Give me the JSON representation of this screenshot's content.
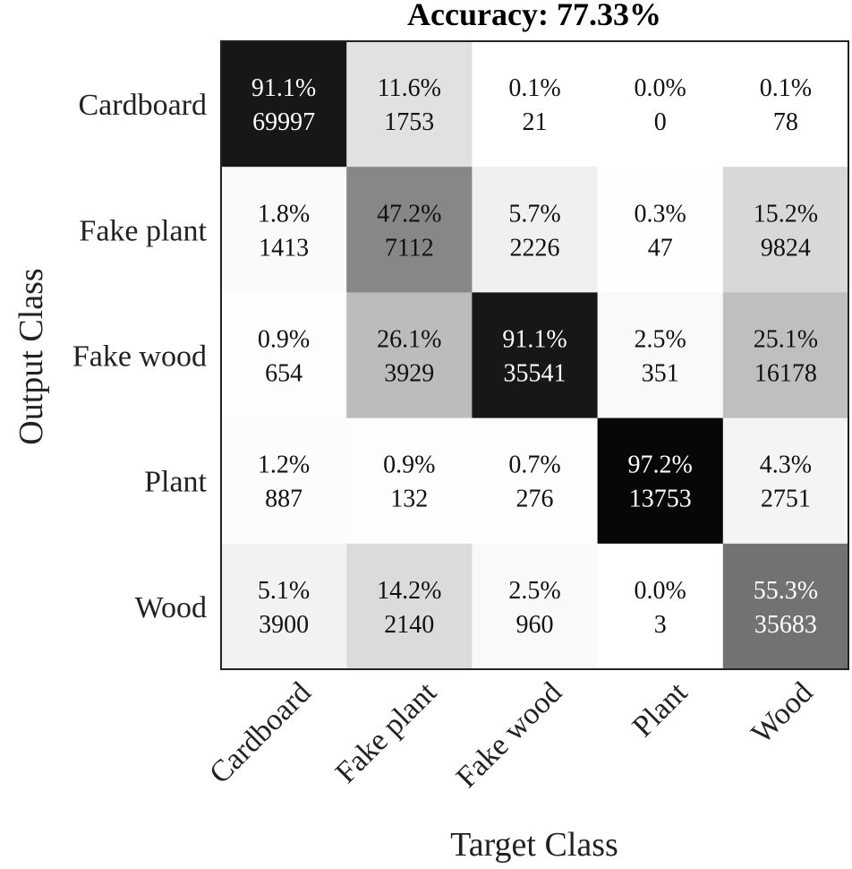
{
  "chart_data": {
    "type": "heatmap",
    "title": "Accuracy: 77.33%",
    "xlabel": "Target Class",
    "ylabel": "Output Class",
    "x_categories": [
      "Cardboard",
      "Fake plant",
      "Fake wood",
      "Plant",
      "Wood"
    ],
    "y_categories": [
      "Cardboard",
      "Fake plant",
      "Fake wood",
      "Plant",
      "Wood"
    ],
    "percent_labels": [
      [
        "91.1%",
        "11.6%",
        "0.1%",
        "0.0%",
        "0.1%"
      ],
      [
        "1.8%",
        "47.2%",
        "5.7%",
        "0.3%",
        "15.2%"
      ],
      [
        "0.9%",
        "26.1%",
        "91.1%",
        "2.5%",
        "25.1%"
      ],
      [
        "1.2%",
        "0.9%",
        "0.7%",
        "97.2%",
        "4.3%"
      ],
      [
        "5.1%",
        "14.2%",
        "2.5%",
        "0.0%",
        "55.3%"
      ]
    ],
    "percent_values": [
      [
        91.1,
        11.6,
        0.1,
        0.0,
        0.1
      ],
      [
        1.8,
        47.2,
        5.7,
        0.3,
        15.2
      ],
      [
        0.9,
        26.1,
        91.1,
        2.5,
        25.1
      ],
      [
        1.2,
        0.9,
        0.7,
        97.2,
        4.3
      ],
      [
        5.1,
        14.2,
        2.5,
        0.0,
        55.3
      ]
    ],
    "counts": [
      [
        69997,
        1753,
        21,
        0,
        78
      ],
      [
        1413,
        7112,
        2226,
        47,
        9824
      ],
      [
        654,
        3929,
        35541,
        351,
        16178
      ],
      [
        887,
        132,
        276,
        13753,
        2751
      ],
      [
        3900,
        2140,
        960,
        3,
        35683
      ]
    ],
    "colormap": "grayscale (white = 0%, black = 100%)"
  }
}
